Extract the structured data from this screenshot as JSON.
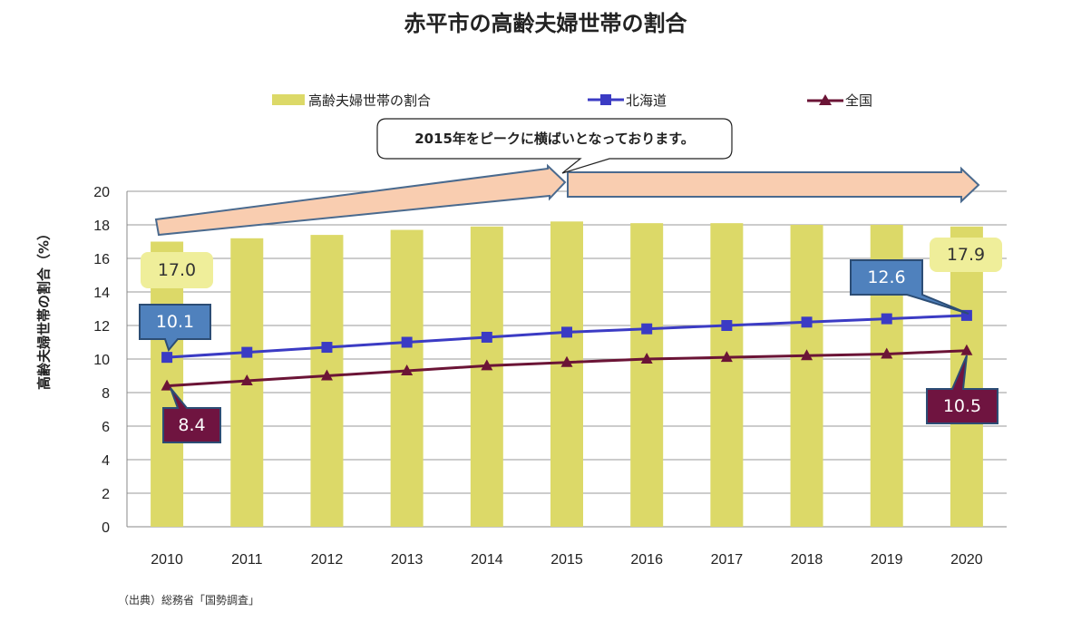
{
  "chart_data": {
    "type": "bar",
    "title": "赤平市の高齢夫婦世帯の割合",
    "ylabel": "高齢夫婦世帯の割合（%）",
    "xlabel": "",
    "categories": [
      "2010",
      "2011",
      "2012",
      "2013",
      "2014",
      "2015",
      "2016",
      "2017",
      "2018",
      "2019",
      "2020"
    ],
    "ylim": [
      0,
      20
    ],
    "yticks": [
      "0",
      "2",
      "4",
      "6",
      "8",
      "10",
      "12",
      "14",
      "16",
      "18",
      "20"
    ],
    "grid": true,
    "legend_position": "top",
    "series": [
      {
        "name": "高齢夫婦世帯の割合",
        "type": "bar",
        "color": "#dcd968",
        "values": [
          17.0,
          17.2,
          17.4,
          17.7,
          17.9,
          18.2,
          18.1,
          18.1,
          18.0,
          18.0,
          17.9
        ]
      },
      {
        "name": "北海道",
        "type": "line",
        "marker": "square",
        "color": "#3b3bc4",
        "values": [
          10.1,
          10.4,
          10.7,
          11.0,
          11.3,
          11.6,
          11.8,
          12.0,
          12.2,
          12.4,
          12.6
        ]
      },
      {
        "name": "全国",
        "type": "line",
        "marker": "triangle",
        "color": "#6b1436",
        "values": [
          8.4,
          8.7,
          9.0,
          9.3,
          9.6,
          9.8,
          10.0,
          10.1,
          10.2,
          10.3,
          10.5
        ]
      }
    ],
    "annotations": {
      "callout": "2015年をピークに横ばいとなっております。",
      "labels": [
        {
          "text": "17.0",
          "series": "高齢夫婦世帯の割合",
          "category": "2010"
        },
        {
          "text": "17.9",
          "series": "高齢夫婦世帯の割合",
          "category": "2020"
        },
        {
          "text": "10.1",
          "series": "北海道",
          "category": "2010"
        },
        {
          "text": "12.6",
          "series": "北海道",
          "category": "2020"
        },
        {
          "text": "8.4",
          "series": "全国",
          "category": "2010"
        },
        {
          "text": "10.5",
          "series": "全国",
          "category": "2020"
        }
      ]
    }
  },
  "source": "（出典）総務省「国勢調査」"
}
